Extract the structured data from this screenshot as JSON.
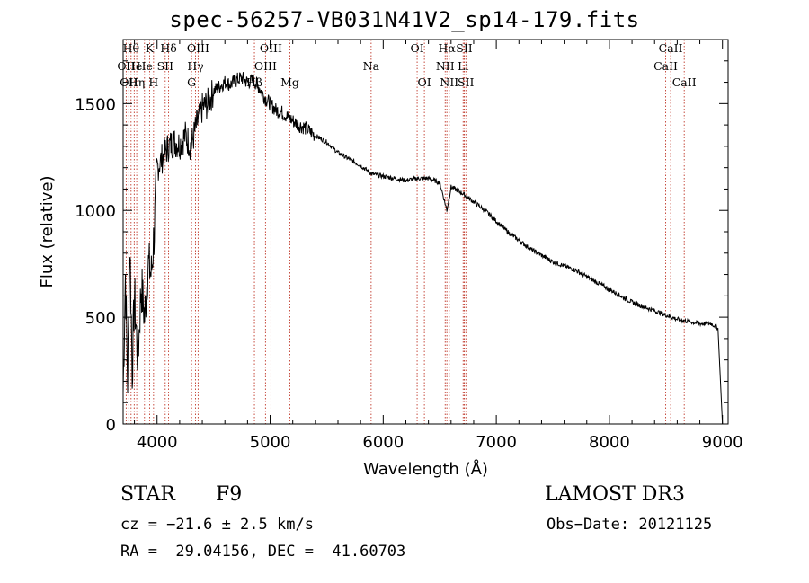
{
  "chart_data": {
    "type": "line",
    "title": "spec-56257-VB031N41V2_sp14-179.fits",
    "xlabel": "Wavelength (Å)",
    "ylabel": "Flux (relative)",
    "xlim": [
      3700,
      9050
    ],
    "ylim": [
      0,
      1800
    ],
    "xticks": [
      4000,
      5000,
      6000,
      7000,
      8000,
      9000
    ],
    "yticks": [
      0,
      500,
      1000,
      1500
    ],
    "grid": false,
    "series": [
      {
        "name": "spectrum",
        "x": [
          3700,
          3720,
          3740,
          3760,
          3780,
          3800,
          3830,
          3860,
          3890,
          3920,
          3950,
          3980,
          4000,
          4050,
          4100,
          4150,
          4200,
          4250,
          4300,
          4350,
          4400,
          4450,
          4500,
          4550,
          4600,
          4650,
          4700,
          4750,
          4800,
          4850,
          4900,
          4950,
          5000,
          5050,
          5100,
          5150,
          5200,
          5250,
          5300,
          5400,
          5500,
          5600,
          5700,
          5800,
          5900,
          6000,
          6100,
          6200,
          6300,
          6400,
          6500,
          6563,
          6600,
          6700,
          6800,
          6900,
          7000,
          7100,
          7200,
          7300,
          7400,
          7500,
          7600,
          7700,
          7800,
          7900,
          8000,
          8100,
          8200,
          8300,
          8400,
          8500,
          8600,
          8700,
          8800,
          8900,
          8960,
          9000
        ],
        "y": [
          150,
          700,
          200,
          850,
          250,
          600,
          300,
          650,
          500,
          750,
          700,
          950,
          1200,
          1250,
          1300,
          1320,
          1310,
          1350,
          1300,
          1400,
          1480,
          1500,
          1560,
          1580,
          1600,
          1590,
          1610,
          1620,
          1600,
          1610,
          1580,
          1530,
          1500,
          1470,
          1460,
          1440,
          1420,
          1400,
          1390,
          1350,
          1320,
          1270,
          1240,
          1210,
          1170,
          1160,
          1150,
          1140,
          1150,
          1150,
          1130,
          1000,
          1110,
          1080,
          1040,
          1000,
          950,
          900,
          860,
          820,
          790,
          760,
          740,
          720,
          690,
          660,
          630,
          600,
          570,
          550,
          530,
          510,
          490,
          480,
          470,
          470,
          450,
          0
        ]
      }
    ],
    "lines": [
      {
        "wl": 3727,
        "label": "OII",
        "row": 2
      },
      {
        "wl": 3750,
        "label": "OII",
        "row": 3
      },
      {
        "wl": 3770,
        "label": "Hθ",
        "row": 1
      },
      {
        "wl": 3798,
        "label": "He",
        "row": 2
      },
      {
        "wl": 3820,
        "label": "Hη",
        "row": 3
      },
      {
        "wl": 3889,
        "label": "He",
        "row": 2
      },
      {
        "wl": 3934,
        "label": "K",
        "row": 1
      },
      {
        "wl": 3969,
        "label": "H",
        "row": 3
      },
      {
        "wl": 4072,
        "label": "SII",
        "row": 2
      },
      {
        "wl": 4102,
        "label": "Hδ",
        "row": 1
      },
      {
        "wl": 4305,
        "label": "G",
        "row": 3
      },
      {
        "wl": 4340,
        "label": "Hγ",
        "row": 2
      },
      {
        "wl": 4363,
        "label": "OIII",
        "row": 1
      },
      {
        "wl": 4861,
        "label": "Hβ",
        "row": 3
      },
      {
        "wl": 4959,
        "label": "OIII",
        "row": 2
      },
      {
        "wl": 5007,
        "label": "OIII",
        "row": 1
      },
      {
        "wl": 5175,
        "label": "Mg",
        "row": 3
      },
      {
        "wl": 5893,
        "label": "Na",
        "row": 2
      },
      {
        "wl": 6300,
        "label": "OI",
        "row": 1
      },
      {
        "wl": 6364,
        "label": "OI",
        "row": 3
      },
      {
        "wl": 6548,
        "label": "NII",
        "row": 2
      },
      {
        "wl": 6563,
        "label": "Hα",
        "row": 1
      },
      {
        "wl": 6584,
        "label": "NII",
        "row": 3
      },
      {
        "wl": 6707,
        "label": "Li",
        "row": 2
      },
      {
        "wl": 6717,
        "label": "SII",
        "row": 1
      },
      {
        "wl": 6731,
        "label": "SII",
        "row": 3
      },
      {
        "wl": 8498,
        "label": "CaII",
        "row": 2
      },
      {
        "wl": 8542,
        "label": "CaII",
        "row": 1
      },
      {
        "wl": 8662,
        "label": "CaII",
        "row": 3
      }
    ]
  },
  "info": {
    "object_class": "STAR",
    "subclass": "F9",
    "survey": "LAMOST DR3",
    "cz": "cz = −21.6 ± 2.5 km/s",
    "obs_date": "Obs−Date: 20121125",
    "radec": "RA =  29.04156, DEC =  41.60703"
  }
}
